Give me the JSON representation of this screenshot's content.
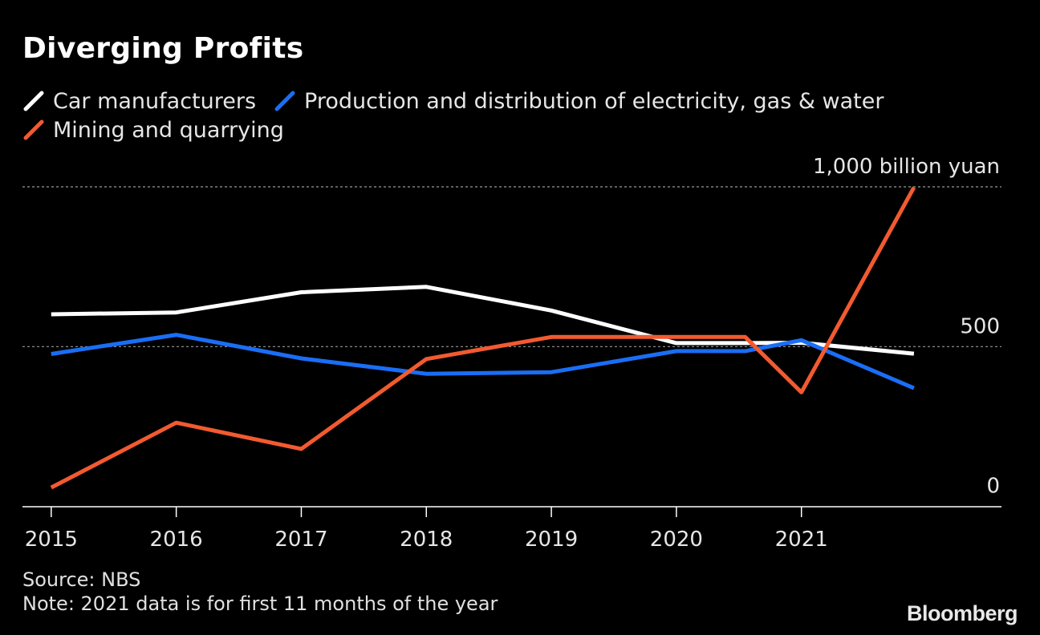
{
  "header": {
    "title": "Diverging Profits"
  },
  "footer": {
    "source": "Source: NBS",
    "note": "Note: 2021 data is for first 11 months of the year",
    "brand": "Bloomberg"
  },
  "chart_data": {
    "type": "line",
    "title": "Diverging Profits",
    "xlabel": "",
    "ylabel": "",
    "unit_label": "1,000 billion yuan",
    "x": [
      2015,
      2016,
      2017,
      2018,
      2019,
      2020,
      2020.55,
      2021,
      2021.9
    ],
    "xticks": [
      2015,
      2016,
      2017,
      2018,
      2019,
      2020,
      2021
    ],
    "xlim": [
      2014.77,
      2022.6
    ],
    "ylim": [
      -1,
      1000
    ],
    "yticks": [
      {
        "value": 0,
        "label": "0"
      },
      {
        "value": 500,
        "label": "500"
      },
      {
        "value": 1000,
        "label": "1,000 billion yuan"
      }
    ],
    "grid": true,
    "legend_position": "top-left",
    "series": [
      {
        "name": "Car manufacturers",
        "color": "#ffffff",
        "values": [
          601,
          607,
          670,
          687,
          613,
          511,
          511,
          512,
          478
        ]
      },
      {
        "name": "Production and distribution of electricity, gas & water",
        "color": "#1a6ef5",
        "values": [
          477,
          537,
          463,
          415,
          420,
          486,
          486,
          520,
          370
        ]
      },
      {
        "name": "Mining and quarrying",
        "color": "#f25a30",
        "values": [
          59,
          262,
          180,
          461,
          530,
          530,
          530,
          357,
          998
        ]
      }
    ]
  }
}
